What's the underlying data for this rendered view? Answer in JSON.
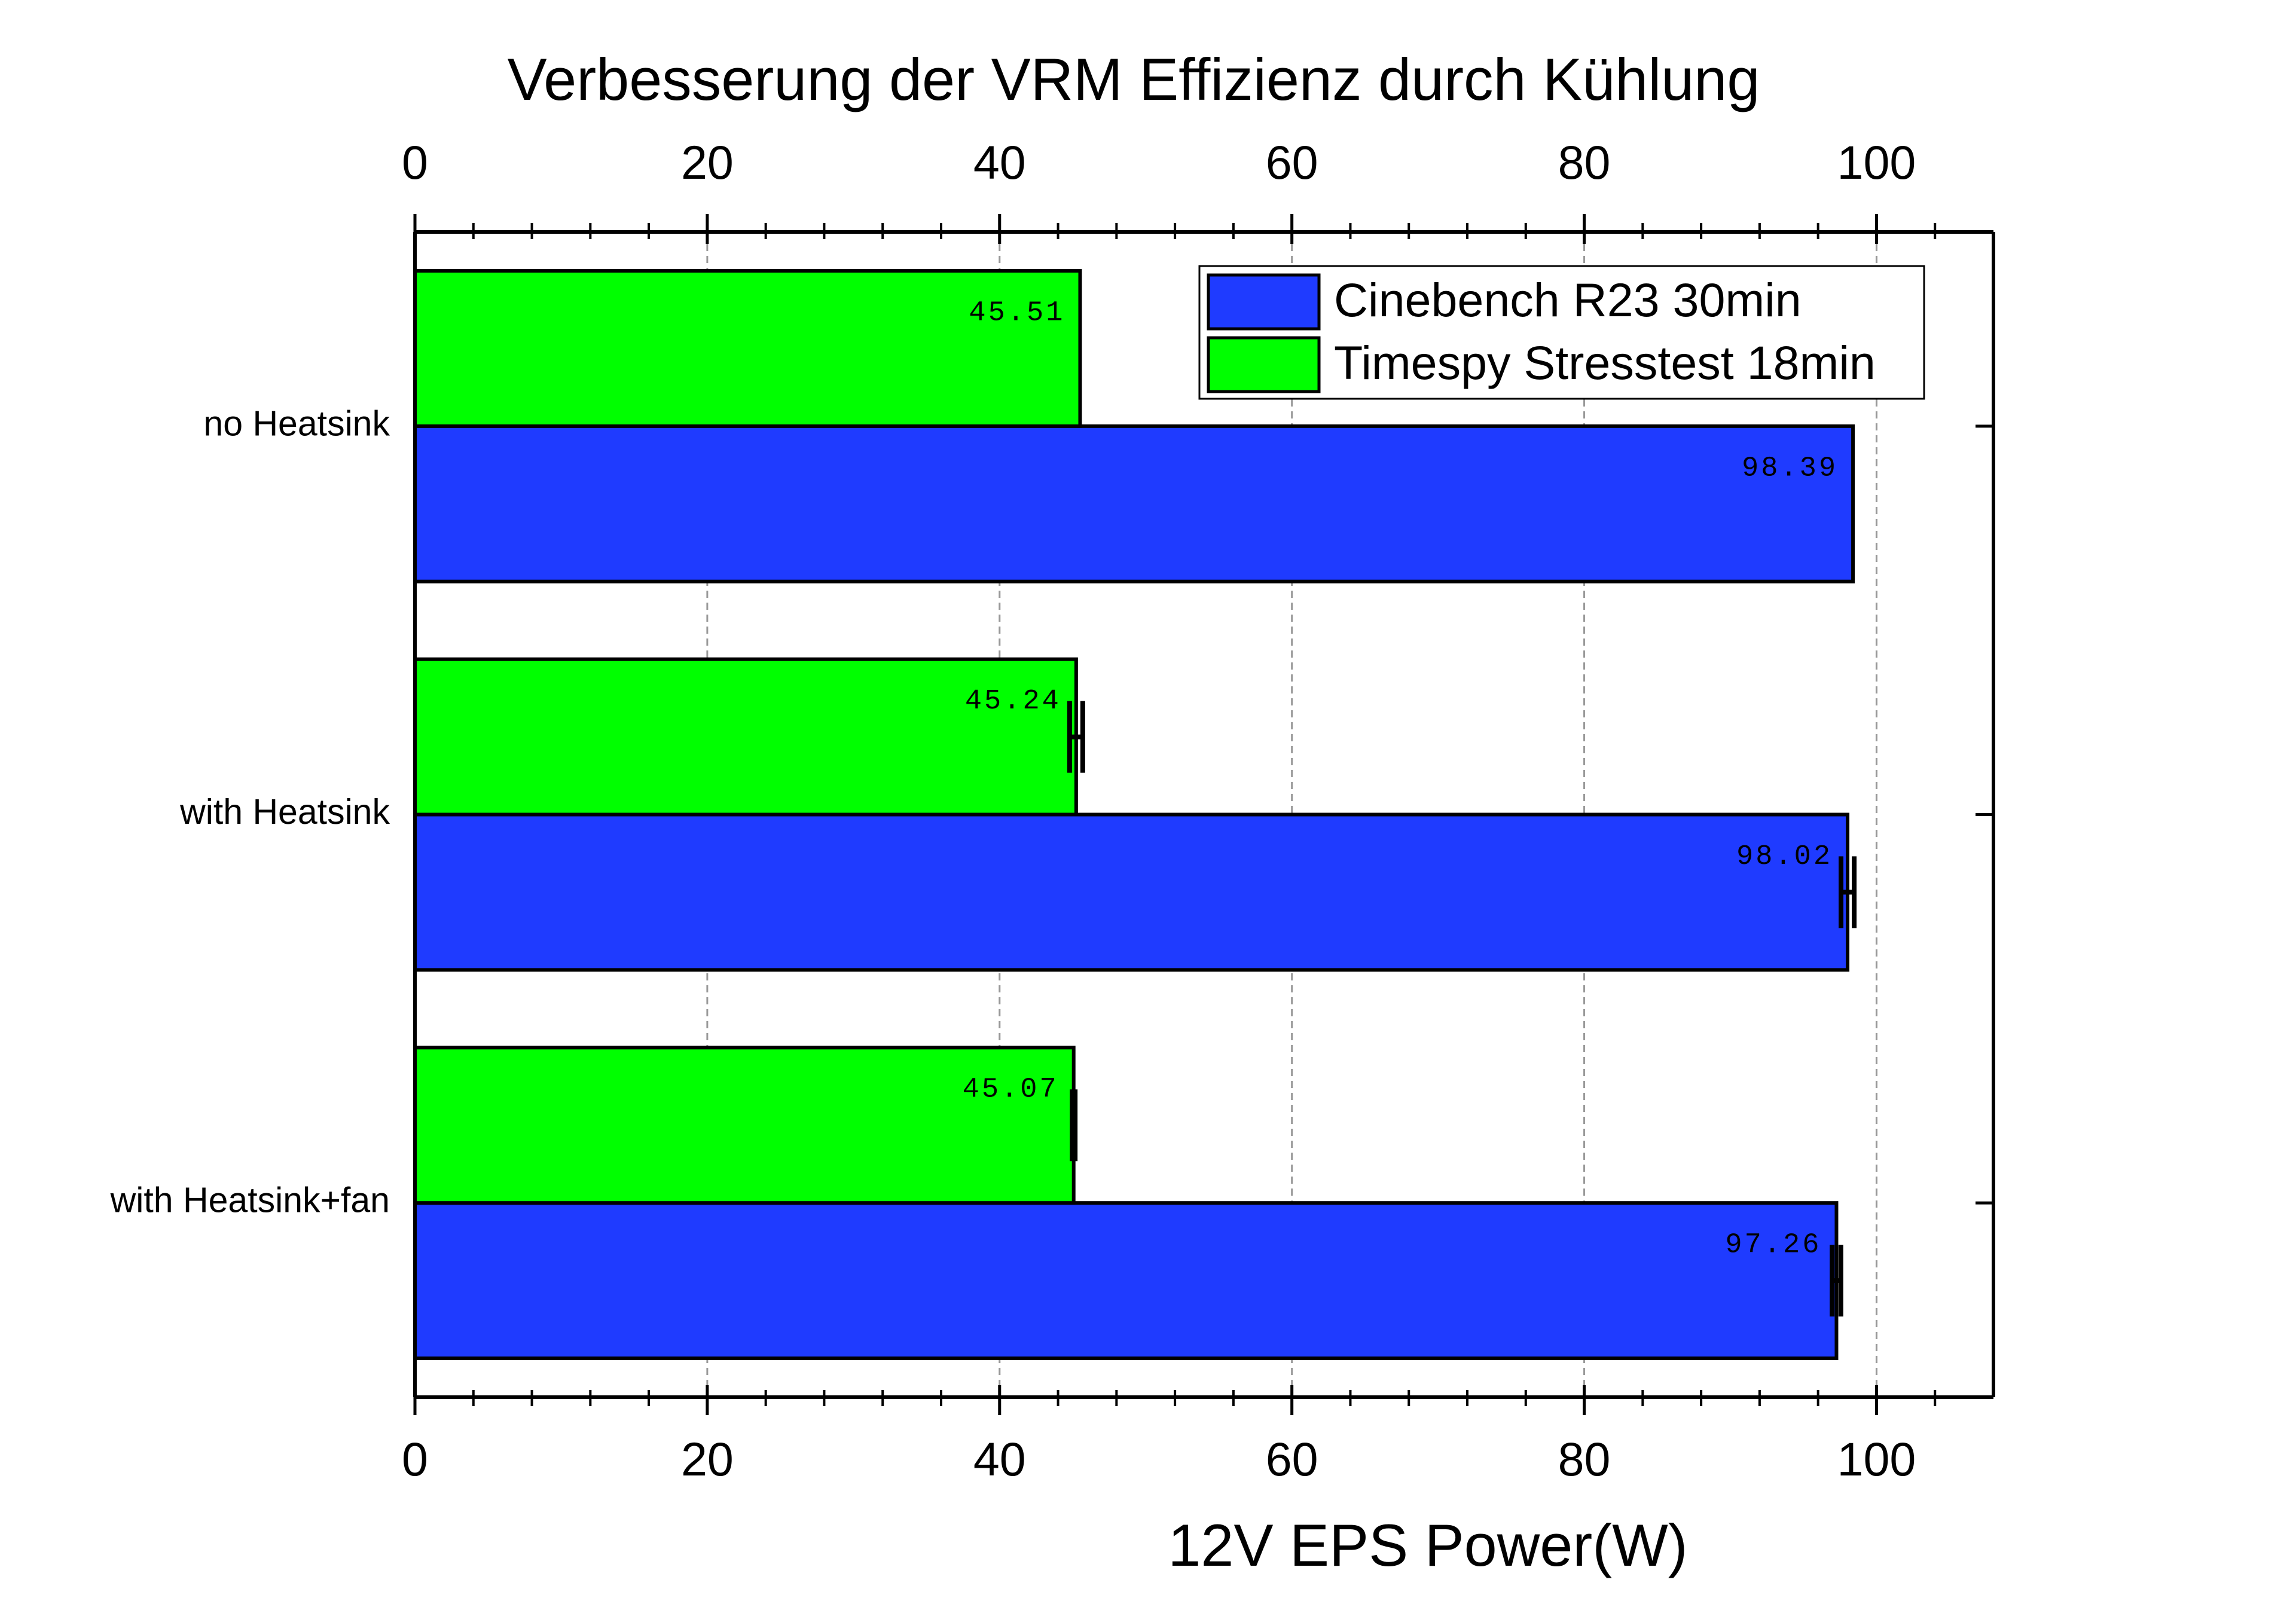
{
  "chart_data": {
    "type": "bar",
    "orientation": "horizontal",
    "title": "Verbesserung der VRM Effizienz durch Kühlung",
    "x_label": "12V EPS Power(W)",
    "categories": [
      "no Heatsink",
      "with Heatsink",
      "with Heatsink+fan"
    ],
    "series": [
      {
        "name": "Cinebench R23 30min",
        "color": "#1f3bff",
        "values": [
          98.39,
          98.02,
          97.26
        ],
        "errors": [
          null,
          0.45,
          0.3
        ]
      },
      {
        "name": "Timespy Stresstest 18min",
        "color": "#00ff00",
        "values": [
          45.51,
          45.24,
          45.07
        ],
        "errors": [
          null,
          0.45,
          0.1
        ]
      }
    ],
    "xlim": [
      0,
      108
    ],
    "xticks": [
      0,
      20,
      40,
      60,
      80,
      100
    ],
    "xminorticks": [
      4,
      8,
      12,
      16,
      24,
      28,
      32,
      36,
      44,
      48,
      52,
      56,
      64,
      68,
      72,
      76,
      84,
      88,
      92,
      96,
      104
    ],
    "grid": true,
    "legend": "top-right"
  }
}
